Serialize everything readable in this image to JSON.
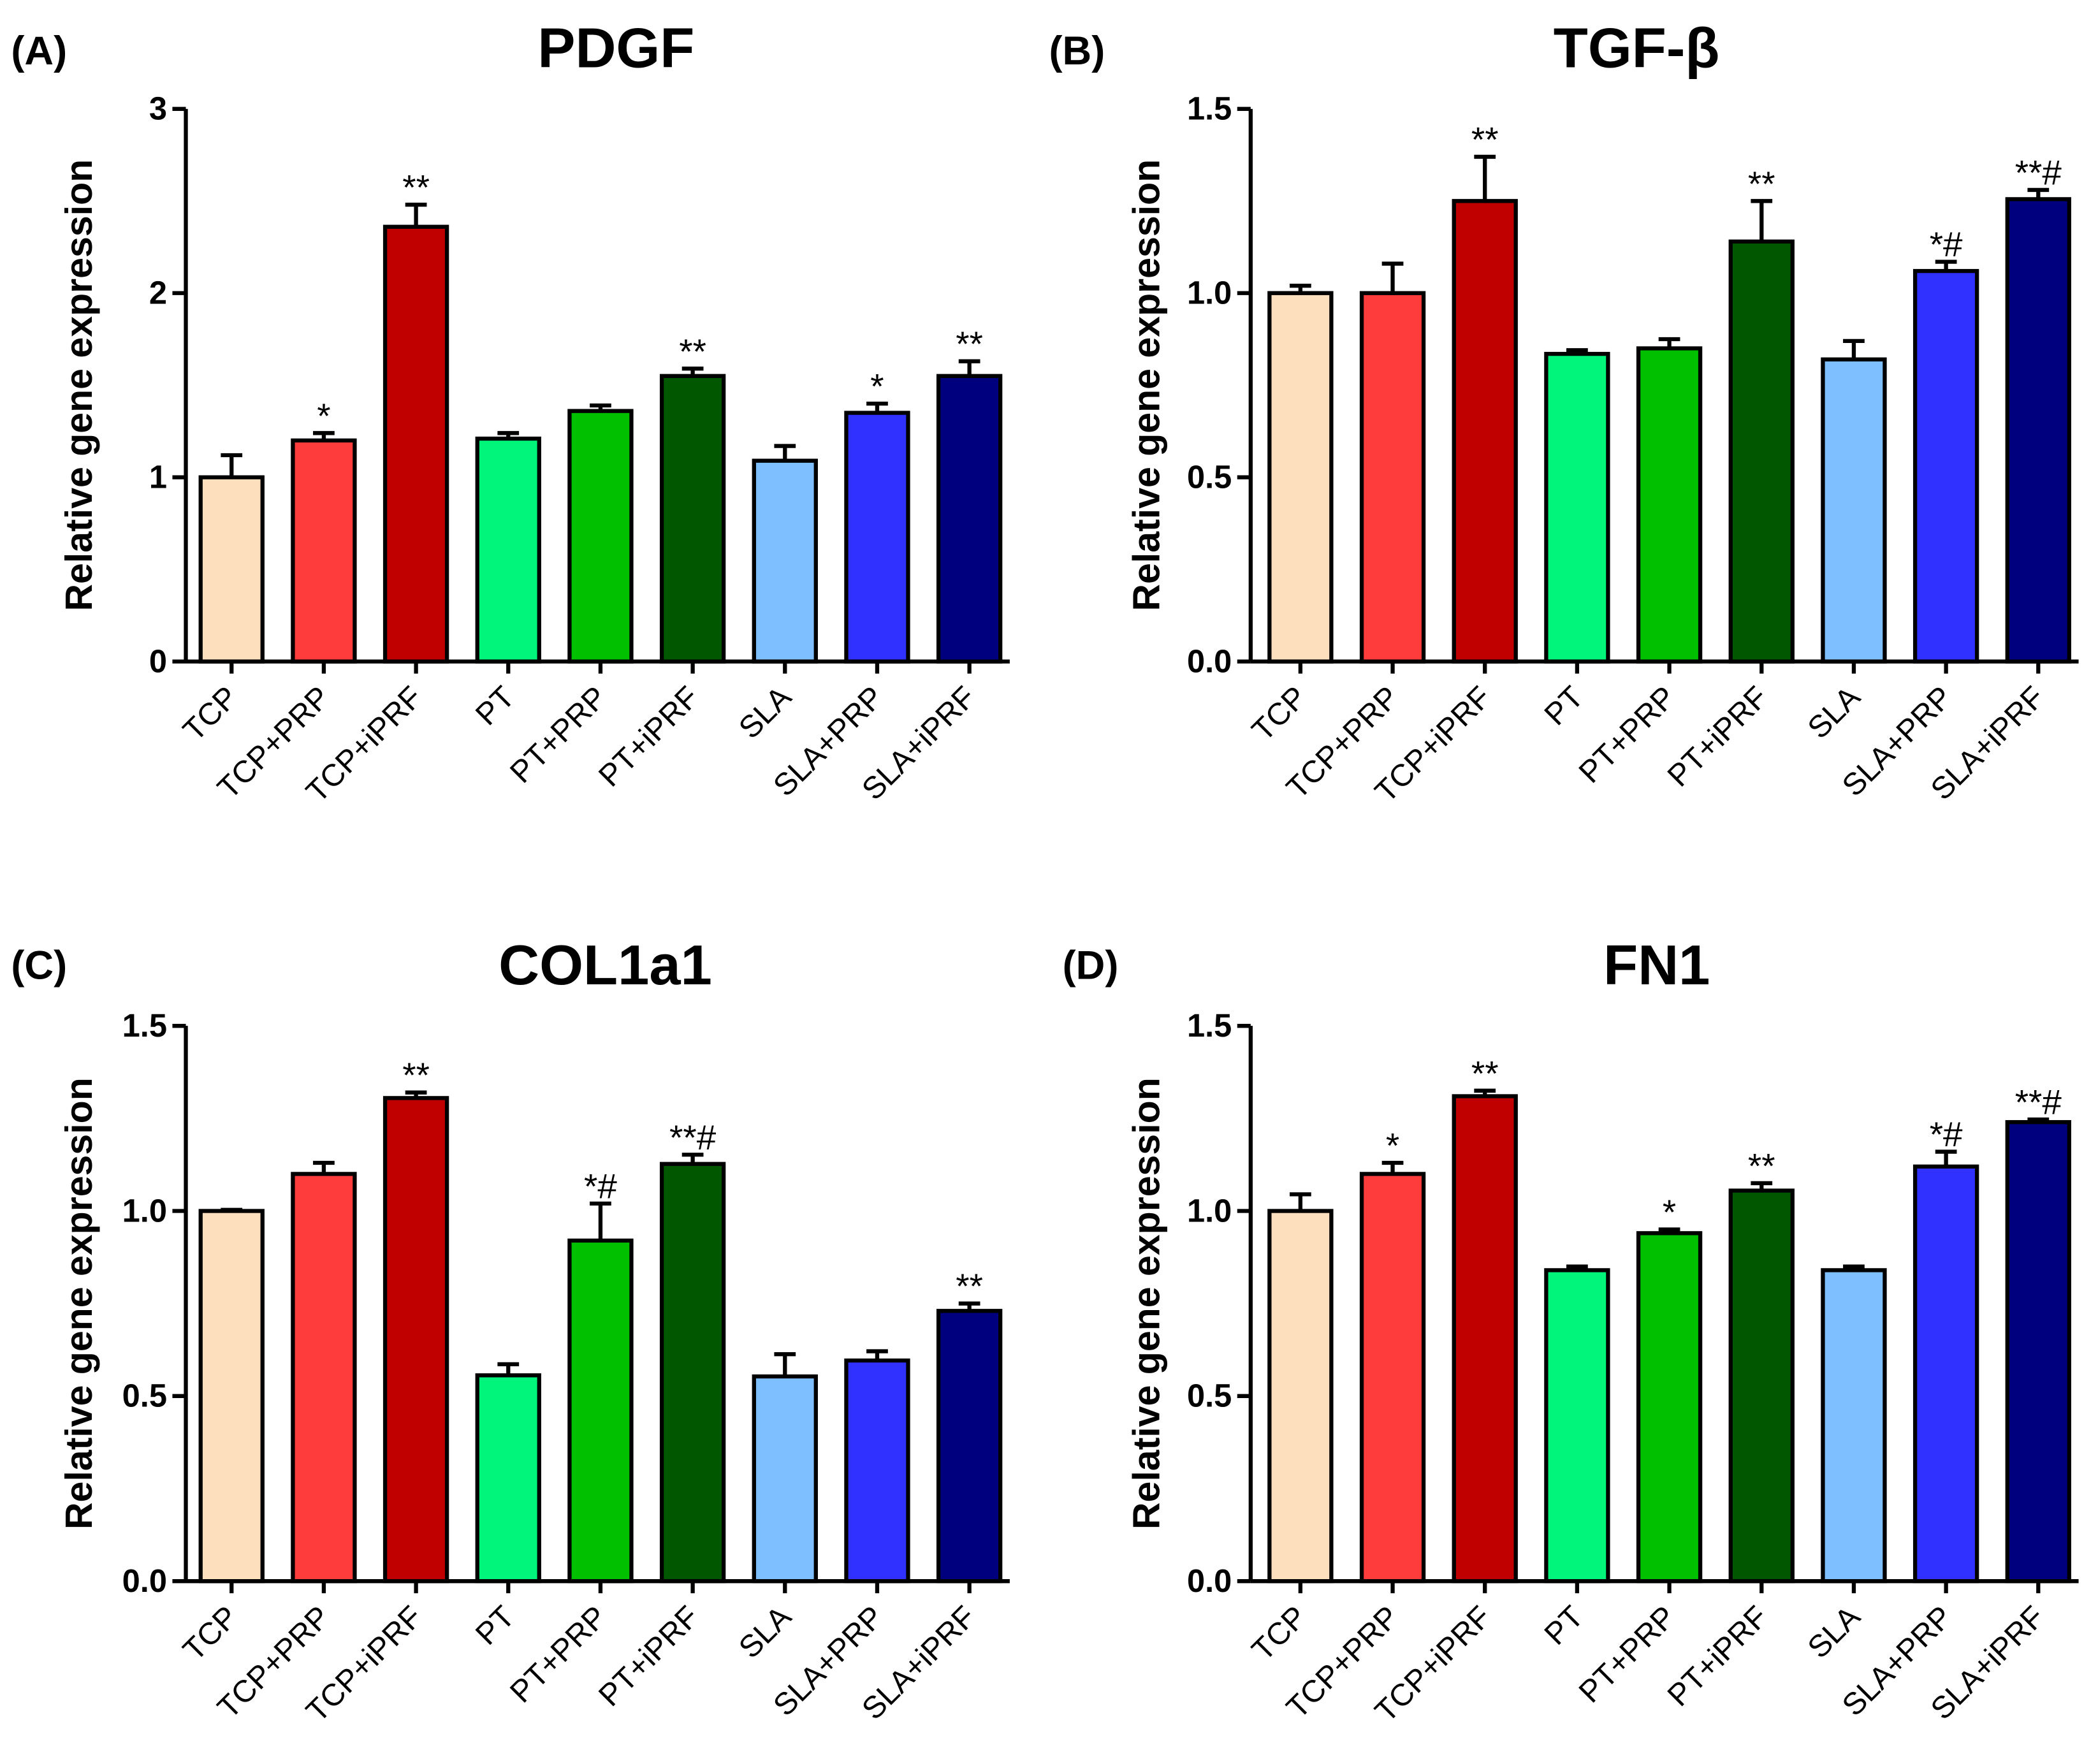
{
  "chart_data": [
    {
      "type": "bar",
      "panel": "(A)",
      "title": "PDGF",
      "ylabel": "Relative gene expression",
      "ylim": [
        0,
        3
      ],
      "yticks": [
        "0",
        "1",
        "2",
        "3"
      ],
      "ytick_values": [
        0,
        1,
        2,
        3
      ],
      "categories": [
        "TCP",
        "TCP+PRP",
        "TCP+iPRF",
        "PT",
        "PT+PRP",
        "PT+iPRF",
        "SLA",
        "SLA+PRP",
        "SLA+iPRF"
      ],
      "values": [
        1.0,
        1.2,
        2.36,
        1.21,
        1.36,
        1.55,
        1.09,
        1.35,
        1.55
      ],
      "errors": [
        0.12,
        0.04,
        0.12,
        0.03,
        0.03,
        0.04,
        0.08,
        0.05,
        0.08
      ],
      "annotations": [
        "",
        "*",
        "**",
        "",
        "",
        "**",
        "",
        "*",
        "**"
      ]
    },
    {
      "type": "bar",
      "panel": "(B)",
      "title": "TGF-β",
      "ylabel": "Relative gene expression",
      "ylim": [
        0,
        1.5
      ],
      "yticks": [
        "0.0",
        "0.5",
        "1.0",
        "1.5"
      ],
      "ytick_values": [
        0,
        0.5,
        1.0,
        1.5
      ],
      "categories": [
        "TCP",
        "TCP+PRP",
        "TCP+iPRF",
        "PT",
        "PT+PRP",
        "PT+iPRF",
        "SLA",
        "SLA+PRP",
        "SLA+iPRF"
      ],
      "values": [
        1.0,
        1.0,
        1.25,
        0.835,
        0.85,
        1.14,
        0.82,
        1.06,
        1.255
      ],
      "errors": [
        0.02,
        0.08,
        0.12,
        0.01,
        0.025,
        0.11,
        0.05,
        0.025,
        0.025
      ],
      "annotations": [
        "",
        "",
        "**",
        "",
        "",
        "**",
        "",
        "*#",
        "**#"
      ]
    },
    {
      "type": "bar",
      "panel": "(C)",
      "title": "COL1a1",
      "ylabel": "Relative gene expression",
      "ylim": [
        0,
        1.5
      ],
      "yticks": [
        "0.0",
        "0.5",
        "1.0",
        "1.5"
      ],
      "ytick_values": [
        0,
        0.5,
        1.0,
        1.5
      ],
      "categories": [
        "TCP",
        "TCP+PRP",
        "TCP+iPRF",
        "PT",
        "PT+PRP",
        "PT+iPRF",
        "SLA",
        "SLA+PRP",
        "SLA+iPRF"
      ],
      "values": [
        1.0,
        1.1,
        1.305,
        0.556,
        0.92,
        1.127,
        0.553,
        0.596,
        0.73
      ],
      "errors": [
        0.003,
        0.03,
        0.015,
        0.03,
        0.1,
        0.025,
        0.06,
        0.025,
        0.02
      ],
      "annotations": [
        "",
        "",
        "**",
        "",
        "*#",
        "**#",
        "",
        "",
        "**"
      ]
    },
    {
      "type": "bar",
      "panel": "(D)",
      "title": "FN1",
      "ylabel": "Relative gene expression",
      "ylim": [
        0,
        1.5
      ],
      "yticks": [
        "0.0",
        "0.5",
        "1.0",
        "1.5"
      ],
      "ytick_values": [
        0,
        0.5,
        1.0,
        1.5
      ],
      "categories": [
        "TCP",
        "TCP+PRP",
        "TCP+iPRF",
        "PT",
        "PT+PRP",
        "PT+iPRF",
        "SLA",
        "SLA+PRP",
        "SLA+iPRF"
      ],
      "values": [
        1.0,
        1.1,
        1.31,
        0.84,
        0.94,
        1.055,
        0.84,
        1.12,
        1.24
      ],
      "errors": [
        0.045,
        0.03,
        0.015,
        0.01,
        0.01,
        0.02,
        0.01,
        0.04,
        0.007
      ],
      "annotations": [
        "",
        "*",
        "**",
        "",
        "*",
        "**",
        "",
        "*#",
        "**#"
      ]
    }
  ],
  "colors": [
    "#FDDFBD",
    "#FF3C3C",
    "#C00000",
    "#00F57A",
    "#00C000",
    "#005700",
    "#7DBFFF",
    "#3030FF",
    "#00007F"
  ]
}
